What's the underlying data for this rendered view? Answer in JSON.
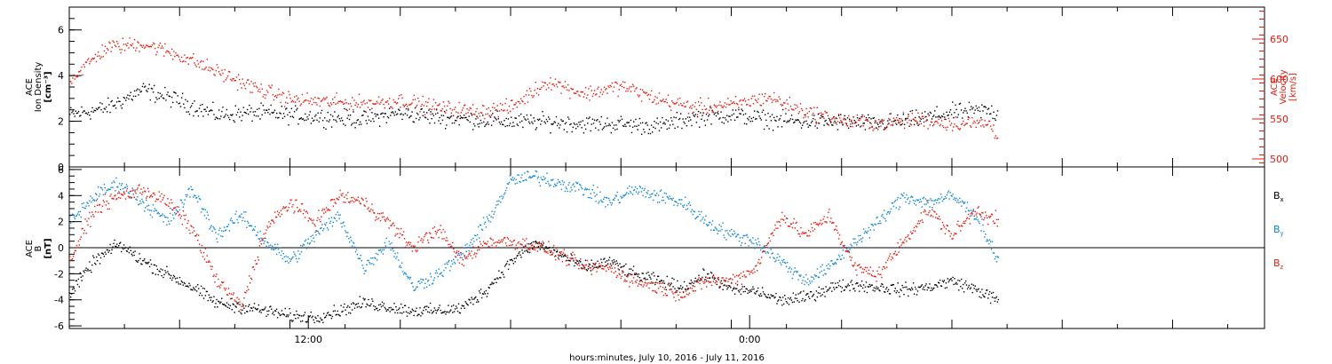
{
  "colors": {
    "black": "#000000",
    "red": "#e8180c",
    "blue": "#0a84d8"
  },
  "chart_data": [
    {
      "type": "scatter",
      "panel": "top",
      "ylabel_left": [
        "ACE",
        "Ion Density",
        "[cm⁻³]"
      ],
      "ylabel_right": [
        "ACE",
        "Velocity",
        "[km/s]"
      ],
      "left_ylim": [
        0,
        7
      ],
      "left_yticks": [
        0,
        2,
        4,
        6
      ],
      "right_ylim": [
        490,
        690
      ],
      "right_yticks": [
        500,
        550,
        600,
        650
      ],
      "xlim": [
        0,
        1950
      ],
      "data_end": 1515,
      "series": [
        {
          "axis": "left",
          "color": "black",
          "x": [
            0,
            60,
            120,
            180,
            240,
            300,
            360,
            420,
            480,
            540,
            600,
            660,
            720,
            780,
            840,
            900,
            960,
            1020,
            1080,
            1140,
            1200,
            1260,
            1320,
            1380,
            1440,
            1500,
            1515
          ],
          "y": [
            2.3,
            2.6,
            3.4,
            2.9,
            2.3,
            2.4,
            2.3,
            2.2,
            2.1,
            2.4,
            2.2,
            2.1,
            2.0,
            2.0,
            1.9,
            1.9,
            1.8,
            2.2,
            2.3,
            2.1,
            2.0,
            2.0,
            1.9,
            2.1,
            2.4,
            2.5,
            2.3
          ]
        },
        {
          "axis": "right",
          "color": "red",
          "x": [
            0,
            60,
            120,
            180,
            240,
            300,
            360,
            420,
            480,
            540,
            600,
            660,
            720,
            780,
            840,
            900,
            960,
            1020,
            1080,
            1140,
            1200,
            1260,
            1320,
            1380,
            1440,
            1500,
            1515
          ],
          "y": [
            600,
            640,
            645,
            630,
            610,
            590,
            575,
            572,
            570,
            574,
            565,
            560,
            565,
            598,
            582,
            592,
            575,
            565,
            568,
            578,
            560,
            548,
            545,
            550,
            545,
            545,
            530
          ]
        }
      ]
    },
    {
      "type": "scatter",
      "panel": "bottom",
      "ylabel_left": [
        "ACE",
        "B",
        "[nT]"
      ],
      "ylim": [
        -6.2,
        6.2
      ],
      "yticks": [
        -6,
        -4,
        -2,
        0,
        2,
        4,
        6
      ],
      "xlim": [
        0,
        1950
      ],
      "xtick_labels": [
        {
          "x": 390,
          "label": "12:00"
        },
        {
          "x": 1110,
          "label": "0:00"
        }
      ],
      "xlabel": "hours:minutes, July 10, 2016 - July 11, 2016",
      "legend": [
        "B",
        "B",
        "B"
      ],
      "legend_subscripts": [
        "x",
        "y",
        "z"
      ],
      "series": [
        {
          "name_sub": "x",
          "color": "black",
          "x": [
            0,
            40,
            80,
            120,
            160,
            200,
            240,
            280,
            320,
            360,
            400,
            440,
            480,
            520,
            560,
            600,
            640,
            680,
            720,
            760,
            800,
            840,
            880,
            920,
            960,
            1000,
            1040,
            1080,
            1120,
            1160,
            1200,
            1240,
            1280,
            1320,
            1360,
            1400,
            1440,
            1480,
            1515
          ],
          "y": [
            -3.5,
            -1.0,
            0.3,
            -1.0,
            -2.0,
            -3.0,
            -4.2,
            -4.5,
            -4.8,
            -5.2,
            -5.3,
            -4.8,
            -4.2,
            -4.5,
            -4.8,
            -4.8,
            -4.6,
            -3.2,
            -1.0,
            0.4,
            -0.5,
            -1.5,
            -1.0,
            -2.0,
            -2.5,
            -3.0,
            -2.0,
            -3.2,
            -3.3,
            -4.0,
            -3.8,
            -3.0,
            -2.8,
            -3.0,
            -3.2,
            -3.0,
            -2.5,
            -3.2,
            -4.0
          ]
        },
        {
          "name_sub": "y",
          "color": "blue",
          "x": [
            0,
            40,
            80,
            120,
            160,
            200,
            240,
            280,
            320,
            360,
            400,
            440,
            480,
            520,
            560,
            600,
            640,
            680,
            720,
            760,
            800,
            840,
            880,
            920,
            960,
            1000,
            1040,
            1080,
            1120,
            1160,
            1200,
            1240,
            1280,
            1320,
            1360,
            1400,
            1440,
            1480,
            1515
          ],
          "y": [
            2.0,
            4.0,
            5.0,
            3.5,
            2.0,
            4.5,
            1.0,
            2.5,
            0.5,
            -1.0,
            1.0,
            2.5,
            -1.5,
            0.5,
            -3.0,
            -2.0,
            -0.5,
            2.0,
            5.2,
            5.5,
            5.0,
            4.5,
            3.5,
            4.5,
            4.0,
            3.5,
            2.0,
            1.0,
            0.5,
            -1.0,
            -2.5,
            -1.5,
            0.5,
            2.0,
            4.0,
            3.5,
            4.0,
            2.5,
            -1.0
          ]
        },
        {
          "name_sub": "z",
          "color": "red",
          "x": [
            0,
            40,
            80,
            120,
            160,
            200,
            240,
            280,
            320,
            360,
            400,
            440,
            480,
            520,
            560,
            600,
            640,
            680,
            720,
            760,
            800,
            840,
            880,
            920,
            960,
            1000,
            1040,
            1080,
            1120,
            1160,
            1200,
            1240,
            1280,
            1320,
            1360,
            1400,
            1440,
            1480,
            1515
          ],
          "y": [
            -1.0,
            3.0,
            4.0,
            4.5,
            3.5,
            1.5,
            -2.5,
            -4.5,
            1.5,
            3.5,
            2.0,
            4.0,
            3.5,
            2.0,
            0.0,
            1.5,
            -1.0,
            0.5,
            0.5,
            0.2,
            -0.5,
            -1.5,
            -1.5,
            -2.5,
            -3.0,
            -3.5,
            -2.5,
            -2.5,
            -1.5,
            2.5,
            1.0,
            2.5,
            -1.5,
            -2.0,
            0.5,
            3.0,
            1.0,
            3.0,
            2.0
          ]
        }
      ]
    }
  ]
}
